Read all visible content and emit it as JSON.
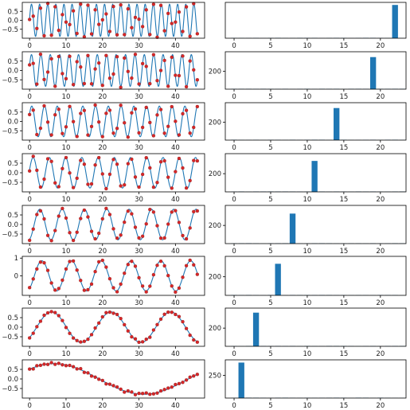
{
  "chart_data": [
    {
      "type": "line",
      "panel": "signal",
      "frequency": 22,
      "amplitude": 0.9,
      "phase": 0.1,
      "x_max": 46,
      "xticks": [
        0,
        10,
        20,
        30,
        40
      ],
      "xtick_labels": [
        "0",
        "10",
        "20",
        "30",
        "40"
      ],
      "yticks": [
        0.5,
        0,
        -0.5
      ],
      "ytick_labels": [
        "0.5",
        "0.0",
        "−0.5"
      ],
      "ylim": [
        -1,
        1
      ],
      "xlim": [
        -2,
        48
      ]
    },
    {
      "type": "bar",
      "panel": "spectrum",
      "peak_bin": 22,
      "peak_value": 390,
      "xticks": [
        0,
        5,
        10,
        15,
        20
      ],
      "xtick_labels": [
        "0",
        "5",
        "10",
        "15",
        "20"
      ],
      "yticks": [],
      "ytick_labels": [],
      "ylim": [
        0,
        420
      ],
      "xlim": [
        -1.2,
        23.5
      ]
    },
    {
      "type": "line",
      "panel": "signal",
      "frequency": 19,
      "amplitude": 0.85,
      "phase": 0.3,
      "x_max": 46,
      "xticks": [
        0,
        10,
        20,
        30,
        40
      ],
      "xtick_labels": [
        "0",
        "10",
        "20",
        "30",
        "40"
      ],
      "yticks": [
        0.5,
        0,
        -0.5
      ],
      "ytick_labels": [
        "0.5",
        "0.0",
        "−0.5"
      ],
      "ylim": [
        -1,
        1
      ],
      "xlim": [
        -2,
        48
      ]
    },
    {
      "type": "bar",
      "panel": "spectrum",
      "peak_bin": 19,
      "peak_value": 360,
      "xticks": [
        0,
        5,
        10,
        15,
        20
      ],
      "xtick_labels": [
        "0",
        "5",
        "10",
        "15",
        "20"
      ],
      "yticks": [
        200
      ],
      "ytick_labels": [
        "200"
      ],
      "ylim": [
        0,
        420
      ],
      "xlim": [
        -1.2,
        23.5
      ]
    },
    {
      "type": "line",
      "panel": "signal",
      "frequency": 14,
      "amplitude": 0.82,
      "phase": 0.5,
      "x_max": 46,
      "xticks": [
        0,
        10,
        20,
        30,
        40
      ],
      "xtick_labels": [
        "0",
        "10",
        "20",
        "30",
        "40"
      ],
      "yticks": [
        0.5,
        0,
        -0.5
      ],
      "ytick_labels": [
        "0.5",
        "0.0",
        "−0.5"
      ],
      "ylim": [
        -1,
        1
      ],
      "xlim": [
        -2,
        48
      ]
    },
    {
      "type": "bar",
      "panel": "spectrum",
      "peak_bin": 14,
      "peak_value": 360,
      "xticks": [
        0,
        5,
        10,
        15,
        20
      ],
      "xtick_labels": [
        "0",
        "5",
        "10",
        "15",
        "20"
      ],
      "yticks": [
        200
      ],
      "ytick_labels": [
        "200"
      ],
      "ylim": [
        0,
        420
      ],
      "xlim": [
        -1.2,
        23.5
      ]
    },
    {
      "type": "line",
      "panel": "signal",
      "frequency": 11,
      "amplitude": 0.8,
      "phase": 0.2,
      "x_max": 46,
      "xticks": [
        0,
        10,
        20,
        30,
        40
      ],
      "xtick_labels": [
        "0",
        "10",
        "20",
        "30",
        "40"
      ],
      "yticks": [
        0.5,
        0,
        -0.5
      ],
      "ytick_labels": [
        "0.5",
        "0.0",
        "−0.5"
      ],
      "ylim": [
        -1,
        1
      ],
      "xlim": [
        -2,
        48
      ]
    },
    {
      "type": "bar",
      "panel": "spectrum",
      "peak_bin": 11,
      "peak_value": 340,
      "xticks": [
        0,
        5,
        10,
        15,
        20
      ],
      "xtick_labels": [
        "0",
        "5",
        "10",
        "15",
        "20"
      ],
      "yticks": [
        200
      ],
      "ytick_labels": [
        "200"
      ],
      "ylim": [
        0,
        420
      ],
      "xlim": [
        -1.2,
        23.5
      ]
    },
    {
      "type": "line",
      "panel": "signal",
      "frequency": 8,
      "amplitude": 0.8,
      "phase": -1.3,
      "x_max": 46,
      "xticks": [
        0,
        10,
        20,
        30,
        40
      ],
      "xtick_labels": [
        "0",
        "10",
        "20",
        "30",
        "40"
      ],
      "yticks": [
        0.5,
        0,
        -0.5
      ],
      "ytick_labels": [
        "0.5",
        "0.0",
        "−0.5"
      ],
      "ylim": [
        -1,
        1
      ],
      "xlim": [
        -2,
        48
      ]
    },
    {
      "type": "bar",
      "panel": "spectrum",
      "peak_bin": 8,
      "peak_value": 330,
      "xticks": [
        0,
        5,
        10,
        15,
        20
      ],
      "xtick_labels": [
        "0",
        "5",
        "10",
        "15",
        "20"
      ],
      "yticks": [
        200
      ],
      "ytick_labels": [
        "200"
      ],
      "ylim": [
        0,
        420
      ],
      "xlim": [
        -1.2,
        23.5
      ]
    },
    {
      "type": "line",
      "panel": "signal",
      "frequency": 6,
      "amplitude": 0.85,
      "phase": -1.0,
      "x_max": 46,
      "xticks": [
        0,
        10,
        20,
        30,
        40
      ],
      "xtick_labels": [
        "0",
        "10",
        "20",
        "30",
        "40"
      ],
      "yticks": [
        1,
        0
      ],
      "ytick_labels": [
        "1",
        "0"
      ],
      "ylim": [
        -1.1,
        1.1
      ],
      "xlim": [
        -2,
        48
      ]
    },
    {
      "type": "bar",
      "panel": "spectrum",
      "peak_bin": 6,
      "peak_value": 340,
      "xticks": [
        0,
        5,
        10,
        15,
        20
      ],
      "xtick_labels": [
        "0",
        "5",
        "10",
        "15",
        "20"
      ],
      "yticks": [
        200
      ],
      "ytick_labels": [
        "200"
      ],
      "ylim": [
        0,
        420
      ],
      "xlim": [
        -1.2,
        23.5
      ]
    },
    {
      "type": "line",
      "panel": "signal",
      "frequency": 3,
      "amplitude": 0.8,
      "phase": -0.75,
      "x_max": 46,
      "xticks": [
        0,
        10,
        20,
        30,
        40
      ],
      "xtick_labels": [
        "0",
        "10",
        "20",
        "30",
        "40"
      ],
      "yticks": [
        0.5,
        0,
        -0.5
      ],
      "ytick_labels": [
        "0.5",
        "0.0",
        "−0.5"
      ],
      "ylim": [
        -1,
        1
      ],
      "xlim": [
        -2,
        48
      ]
    },
    {
      "type": "bar",
      "panel": "spectrum",
      "peak_bin": 3,
      "peak_value": 370,
      "xticks": [
        0,
        5,
        10,
        15,
        20
      ],
      "xtick_labels": [
        "0",
        "5",
        "10",
        "15",
        "20"
      ],
      "yticks": [
        200
      ],
      "ytick_labels": [
        "200"
      ],
      "ylim": [
        0,
        420
      ],
      "xlim": [
        -1.2,
        23.5
      ]
    },
    {
      "type": "line",
      "panel": "signal",
      "frequency": 1,
      "amplitude": 0.8,
      "phase": 0.7,
      "x_max": 46,
      "xticks": [
        0,
        10,
        20,
        30,
        40
      ],
      "xtick_labels": [
        "0",
        "10",
        "20",
        "30",
        "40"
      ],
      "yticks": [
        0.5,
        0,
        -0.5
      ],
      "ytick_labels": [
        "0.5",
        "0.0",
        "−0.5"
      ],
      "ylim": [
        -1,
        1
      ],
      "xlim": [
        -2,
        48
      ]
    },
    {
      "type": "bar",
      "panel": "spectrum",
      "peak_bin": 1,
      "peak_value": 390,
      "xticks": [
        0,
        5,
        10,
        15,
        20
      ],
      "xtick_labels": [
        "0",
        "5",
        "10",
        "15",
        "20"
      ],
      "yticks": [
        250
      ],
      "ytick_labels": [
        "250"
      ],
      "ylim": [
        0,
        420
      ],
      "xlim": [
        -1.2,
        23.5
      ]
    }
  ],
  "colors": {
    "line": "#1f77b4",
    "points": "#d62728",
    "bars": "#1f77b4",
    "axes": "#000000"
  }
}
